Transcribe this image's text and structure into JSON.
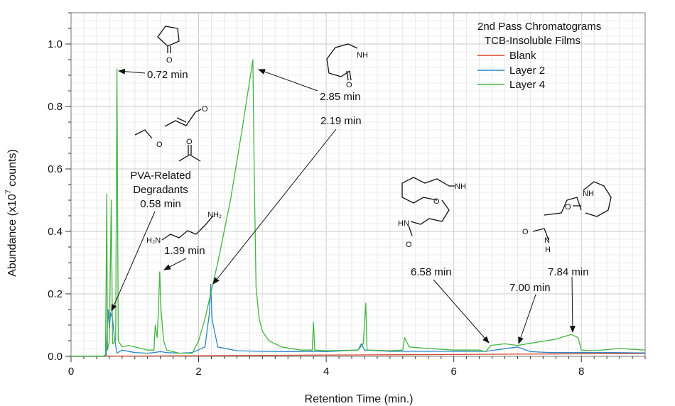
{
  "chart_data": {
    "type": "line",
    "xlabel": "Retention Time (min.)",
    "ylabel_parts": {
      "pre": "Abundance (x10",
      "sup": "7",
      "post": " counts)"
    },
    "xlim": [
      0,
      9
    ],
    "ylim": [
      0,
      1.1
    ],
    "x_ticks": [
      0,
      2,
      4,
      6,
      8
    ],
    "y_ticks": [
      0.0,
      0.2,
      0.4,
      0.6,
      0.8,
      1.0
    ],
    "x_tick_labels": [
      "0",
      "2",
      "4",
      "6",
      "8"
    ],
    "y_tick_labels": [
      "0.0",
      "0.2",
      "0.4",
      "0.6",
      "0.8",
      "1.0"
    ],
    "grid": true,
    "legend": {
      "placement": "top-right",
      "title_lines": [
        "2nd Pass Chromatograms",
        "TCB-Insoluble Films"
      ]
    },
    "series": [
      {
        "name": "Blank",
        "color": "#d9482b",
        "points": [
          [
            0,
            0.0
          ],
          [
            0.5,
            0.001
          ],
          [
            1.0,
            0.001
          ],
          [
            2.0,
            0.002
          ],
          [
            3.0,
            0.003
          ],
          [
            4.0,
            0.004
          ],
          [
            5.0,
            0.005
          ],
          [
            6.0,
            0.006
          ],
          [
            7.0,
            0.007
          ],
          [
            8.0,
            0.008
          ],
          [
            9.0,
            0.009
          ]
        ]
      },
      {
        "name": "Layer 2",
        "color": "#2c86c4",
        "points": [
          [
            0,
            0.0
          ],
          [
            0.5,
            0.0
          ],
          [
            0.55,
            0.003
          ],
          [
            0.58,
            0.15
          ],
          [
            0.6,
            0.09
          ],
          [
            0.62,
            0.14
          ],
          [
            0.65,
            0.12
          ],
          [
            0.68,
            0.06
          ],
          [
            0.72,
            0.01
          ],
          [
            0.8,
            0.02
          ],
          [
            1.0,
            0.012
          ],
          [
            1.2,
            0.01
          ],
          [
            1.3,
            0.012
          ],
          [
            1.4,
            0.015
          ],
          [
            1.5,
            0.012
          ],
          [
            1.7,
            0.01
          ],
          [
            1.9,
            0.012
          ],
          [
            2.1,
            0.03
          ],
          [
            2.17,
            0.14
          ],
          [
            2.19,
            0.23
          ],
          [
            2.21,
            0.12
          ],
          [
            2.3,
            0.03
          ],
          [
            2.6,
            0.018
          ],
          [
            3.0,
            0.016
          ],
          [
            3.5,
            0.015
          ],
          [
            3.8,
            0.016
          ],
          [
            4.0,
            0.015
          ],
          [
            4.5,
            0.02
          ],
          [
            4.55,
            0.04
          ],
          [
            4.6,
            0.02
          ],
          [
            5.0,
            0.016
          ],
          [
            5.5,
            0.016
          ],
          [
            6.0,
            0.016
          ],
          [
            6.5,
            0.016
          ],
          [
            7.0,
            0.03
          ],
          [
            7.2,
            0.015
          ],
          [
            7.5,
            0.012
          ],
          [
            8.0,
            0.012
          ],
          [
            8.5,
            0.012
          ],
          [
            9.0,
            0.011
          ]
        ]
      },
      {
        "name": "Layer 4",
        "color": "#43b53f",
        "points": [
          [
            0,
            0.0
          ],
          [
            0.5,
            0.0
          ],
          [
            0.54,
            0.005
          ],
          [
            0.56,
            0.52
          ],
          [
            0.57,
            0.02
          ],
          [
            0.6,
            0.05
          ],
          [
            0.63,
            0.5
          ],
          [
            0.65,
            0.04
          ],
          [
            0.7,
            0.05
          ],
          [
            0.72,
            0.92
          ],
          [
            0.74,
            0.05
          ],
          [
            0.8,
            0.03
          ],
          [
            0.9,
            0.035
          ],
          [
            1.0,
            0.03
          ],
          [
            1.2,
            0.02
          ],
          [
            1.3,
            0.02
          ],
          [
            1.32,
            0.1
          ],
          [
            1.35,
            0.06
          ],
          [
            1.37,
            0.15
          ],
          [
            1.39,
            0.27
          ],
          [
            1.41,
            0.15
          ],
          [
            1.45,
            0.05
          ],
          [
            1.5,
            0.02
          ],
          [
            1.7,
            0.01
          ],
          [
            1.9,
            0.01
          ],
          [
            2.0,
            0.05
          ],
          [
            2.1,
            0.12
          ],
          [
            2.3,
            0.3
          ],
          [
            2.5,
            0.5
          ],
          [
            2.7,
            0.75
          ],
          [
            2.85,
            0.95
          ],
          [
            2.87,
            0.6
          ],
          [
            2.9,
            0.22
          ],
          [
            2.95,
            0.12
          ],
          [
            3.0,
            0.08
          ],
          [
            3.1,
            0.05
          ],
          [
            3.3,
            0.03
          ],
          [
            3.6,
            0.02
          ],
          [
            3.78,
            0.02
          ],
          [
            3.8,
            0.11
          ],
          [
            3.82,
            0.02
          ],
          [
            4.0,
            0.018
          ],
          [
            4.5,
            0.02
          ],
          [
            4.58,
            0.04
          ],
          [
            4.62,
            0.17
          ],
          [
            4.64,
            0.02
          ],
          [
            5.0,
            0.018
          ],
          [
            5.2,
            0.02
          ],
          [
            5.23,
            0.06
          ],
          [
            5.3,
            0.03
          ],
          [
            5.6,
            0.025
          ],
          [
            6.0,
            0.02
          ],
          [
            6.4,
            0.02
          ],
          [
            6.5,
            0.015
          ],
          [
            6.58,
            0.035
          ],
          [
            6.8,
            0.04
          ],
          [
            7.0,
            0.035
          ],
          [
            7.3,
            0.045
          ],
          [
            7.6,
            0.055
          ],
          [
            7.84,
            0.07
          ],
          [
            7.95,
            0.06
          ],
          [
            8.0,
            0.02
          ],
          [
            8.2,
            0.018
          ],
          [
            8.6,
            0.025
          ],
          [
            9.0,
            0.02
          ]
        ]
      }
    ],
    "annotations": [
      {
        "id": "a072",
        "text": "0.72 min",
        "x": 0.72,
        "y": 0.92
      },
      {
        "id": "a285",
        "text": "2.85 min",
        "x": 2.85,
        "y": 0.95
      },
      {
        "id": "a219",
        "text": "2.19 min",
        "x": 2.19,
        "y": 0.23
      },
      {
        "id": "a139",
        "text": "1.39 min",
        "x": 1.39,
        "y": 0.27
      },
      {
        "id": "a058",
        "text": "0.58 min",
        "x": 0.58,
        "y": 0.15
      },
      {
        "id": "apva1",
        "text": "PVA-Related"
      },
      {
        "id": "apva2",
        "text": "Degradants"
      },
      {
        "id": "a658",
        "text": "6.58 min",
        "x": 6.58,
        "y": 0.035
      },
      {
        "id": "a700",
        "text": "7.00 min",
        "x": 7.0,
        "y": 0.03
      },
      {
        "id": "a784",
        "text": "7.84 min",
        "x": 7.84,
        "y": 0.07
      }
    ],
    "structure_labels": {
      "o": "O",
      "nh": "NH",
      "hn": "HN",
      "h": "H",
      "n": "N",
      "h2n": "H₂N",
      "nh2": "NH₂"
    }
  }
}
